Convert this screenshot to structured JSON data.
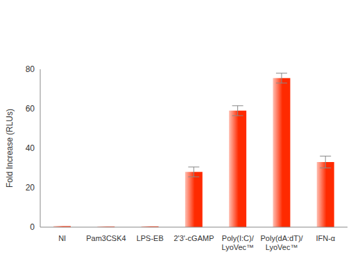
{
  "chart_data": {
    "type": "bar",
    "y_label": "Fold Increase (RLUs)",
    "categories": [
      "NI",
      "Pam3CSK4",
      "LPS-EB",
      "2'3'-cGAMP",
      "Poly(I:C)/LyoVec™",
      "Poly(dA:dT)/LyoVec™",
      "IFN-α"
    ],
    "values": [
      0.5,
      0.3,
      0.4,
      28,
      59,
      75.5,
      33
    ],
    "errors": [
      0,
      0,
      0,
      2.5,
      2.5,
      2.5,
      3
    ],
    "color": "#ff2a00",
    "ylim": [
      0,
      80
    ],
    "yticks": [
      0,
      20,
      40,
      60,
      80
    ],
    "grid": false
  }
}
